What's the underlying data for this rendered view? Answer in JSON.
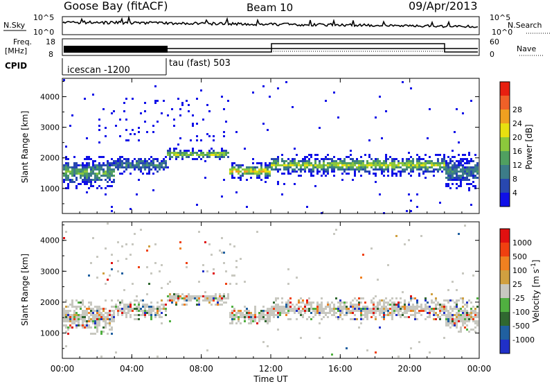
{
  "header": {
    "station": "Goose Bay (fitACF)",
    "beam": "Beam 10",
    "date": "09/Apr/2013"
  },
  "noise_panel": {
    "left_label": "N.Sky",
    "left_ticks": [
      "10^5",
      "10^0"
    ],
    "right_label": "N.Search",
    "right_ticks": [
      "10^5",
      "10^0"
    ]
  },
  "freq_panel": {
    "left_label_top": "Freq.",
    "left_label_bottom": "[MHz]",
    "left_ticks": [
      "18",
      "8"
    ],
    "right_label": "Nave",
    "right_ticks": [
      "60",
      "0"
    ]
  },
  "cpid": {
    "label": "CPID",
    "segments": [
      {
        "text": "icescan -1200",
        "start_hour": 0
      },
      {
        "text": "tau (fast) 503",
        "start_hour": 6
      }
    ]
  },
  "power_panel": {
    "ylabel": "Slant Range [km]",
    "yticks": [
      "1000",
      "2000",
      "3000",
      "4000"
    ],
    "colorbar_label": "Power [dB]",
    "colorbar_ticks": [
      "4",
      "8",
      "12",
      "16",
      "20",
      "24",
      "28"
    ],
    "colors": [
      "#1010e8",
      "#2848b0",
      "#3c7c88",
      "#50a060",
      "#8cc83c",
      "#e8e010",
      "#f0a020",
      "#f06028",
      "#e82010"
    ]
  },
  "velocity_panel": {
    "ylabel": "Slant Range [km]",
    "yticks": [
      "1000",
      "2000",
      "3000",
      "4000"
    ],
    "colorbar_label": "Velocity [m s",
    "colorbar_label_sup": "-1",
    "colorbar_label_end": "]",
    "colorbar_ticks": [
      "1000",
      "500",
      "100",
      "25",
      "-25",
      "-100",
      "-500",
      "-1000"
    ],
    "colors": [
      "#2030c8",
      "#2060a0",
      "#306830",
      "#50b040",
      "#c8c8c0",
      "#d0a040",
      "#f08020",
      "#f04010",
      "#e01010"
    ]
  },
  "xaxis": {
    "ticks": [
      "00:00",
      "04:00",
      "08:00",
      "12:00",
      "16:00",
      "20:00",
      "00:00"
    ],
    "label": "Time UT"
  },
  "chart_data": {
    "type": "heatmap",
    "x_range_hours": [
      0,
      24
    ],
    "y_range_km": [
      180,
      4600
    ],
    "mode_change_hour": 6,
    "bands_km": [
      {
        "start_hour": 0,
        "end_hour": 3,
        "center_km": 1550,
        "width_km": 700,
        "power_db": 12
      },
      {
        "start_hour": 3,
        "end_hour": 6,
        "center_km": 1800,
        "width_km": 400,
        "power_db": 8
      },
      {
        "start_hour": 6,
        "end_hour": 9.5,
        "center_km": 2150,
        "width_km": 250,
        "power_db": 16
      },
      {
        "start_hour": 9.5,
        "end_hour": 12,
        "center_km": 1600,
        "width_km": 400,
        "power_db": 20
      },
      {
        "start_hour": 12,
        "end_hour": 22,
        "center_km": 1800,
        "width_km": 450,
        "power_db": 16
      },
      {
        "start_hour": 22,
        "end_hour": 24,
        "center_km": 1600,
        "width_km": 700,
        "power_db": 8
      }
    ],
    "frequency_mhz": [
      {
        "start_hour": 0,
        "end_hour": 6,
        "value": "8-18"
      },
      {
        "start_hour": 6,
        "end_hour": 24,
        "value": 10
      }
    ],
    "nave": [
      {
        "start_hour": 6,
        "end_hour": 12,
        "value": 30
      },
      {
        "start_hour": 12,
        "end_hour": 22,
        "value": 45
      },
      {
        "start_hour": 22,
        "end_hour": 24,
        "value": 30
      }
    ]
  }
}
